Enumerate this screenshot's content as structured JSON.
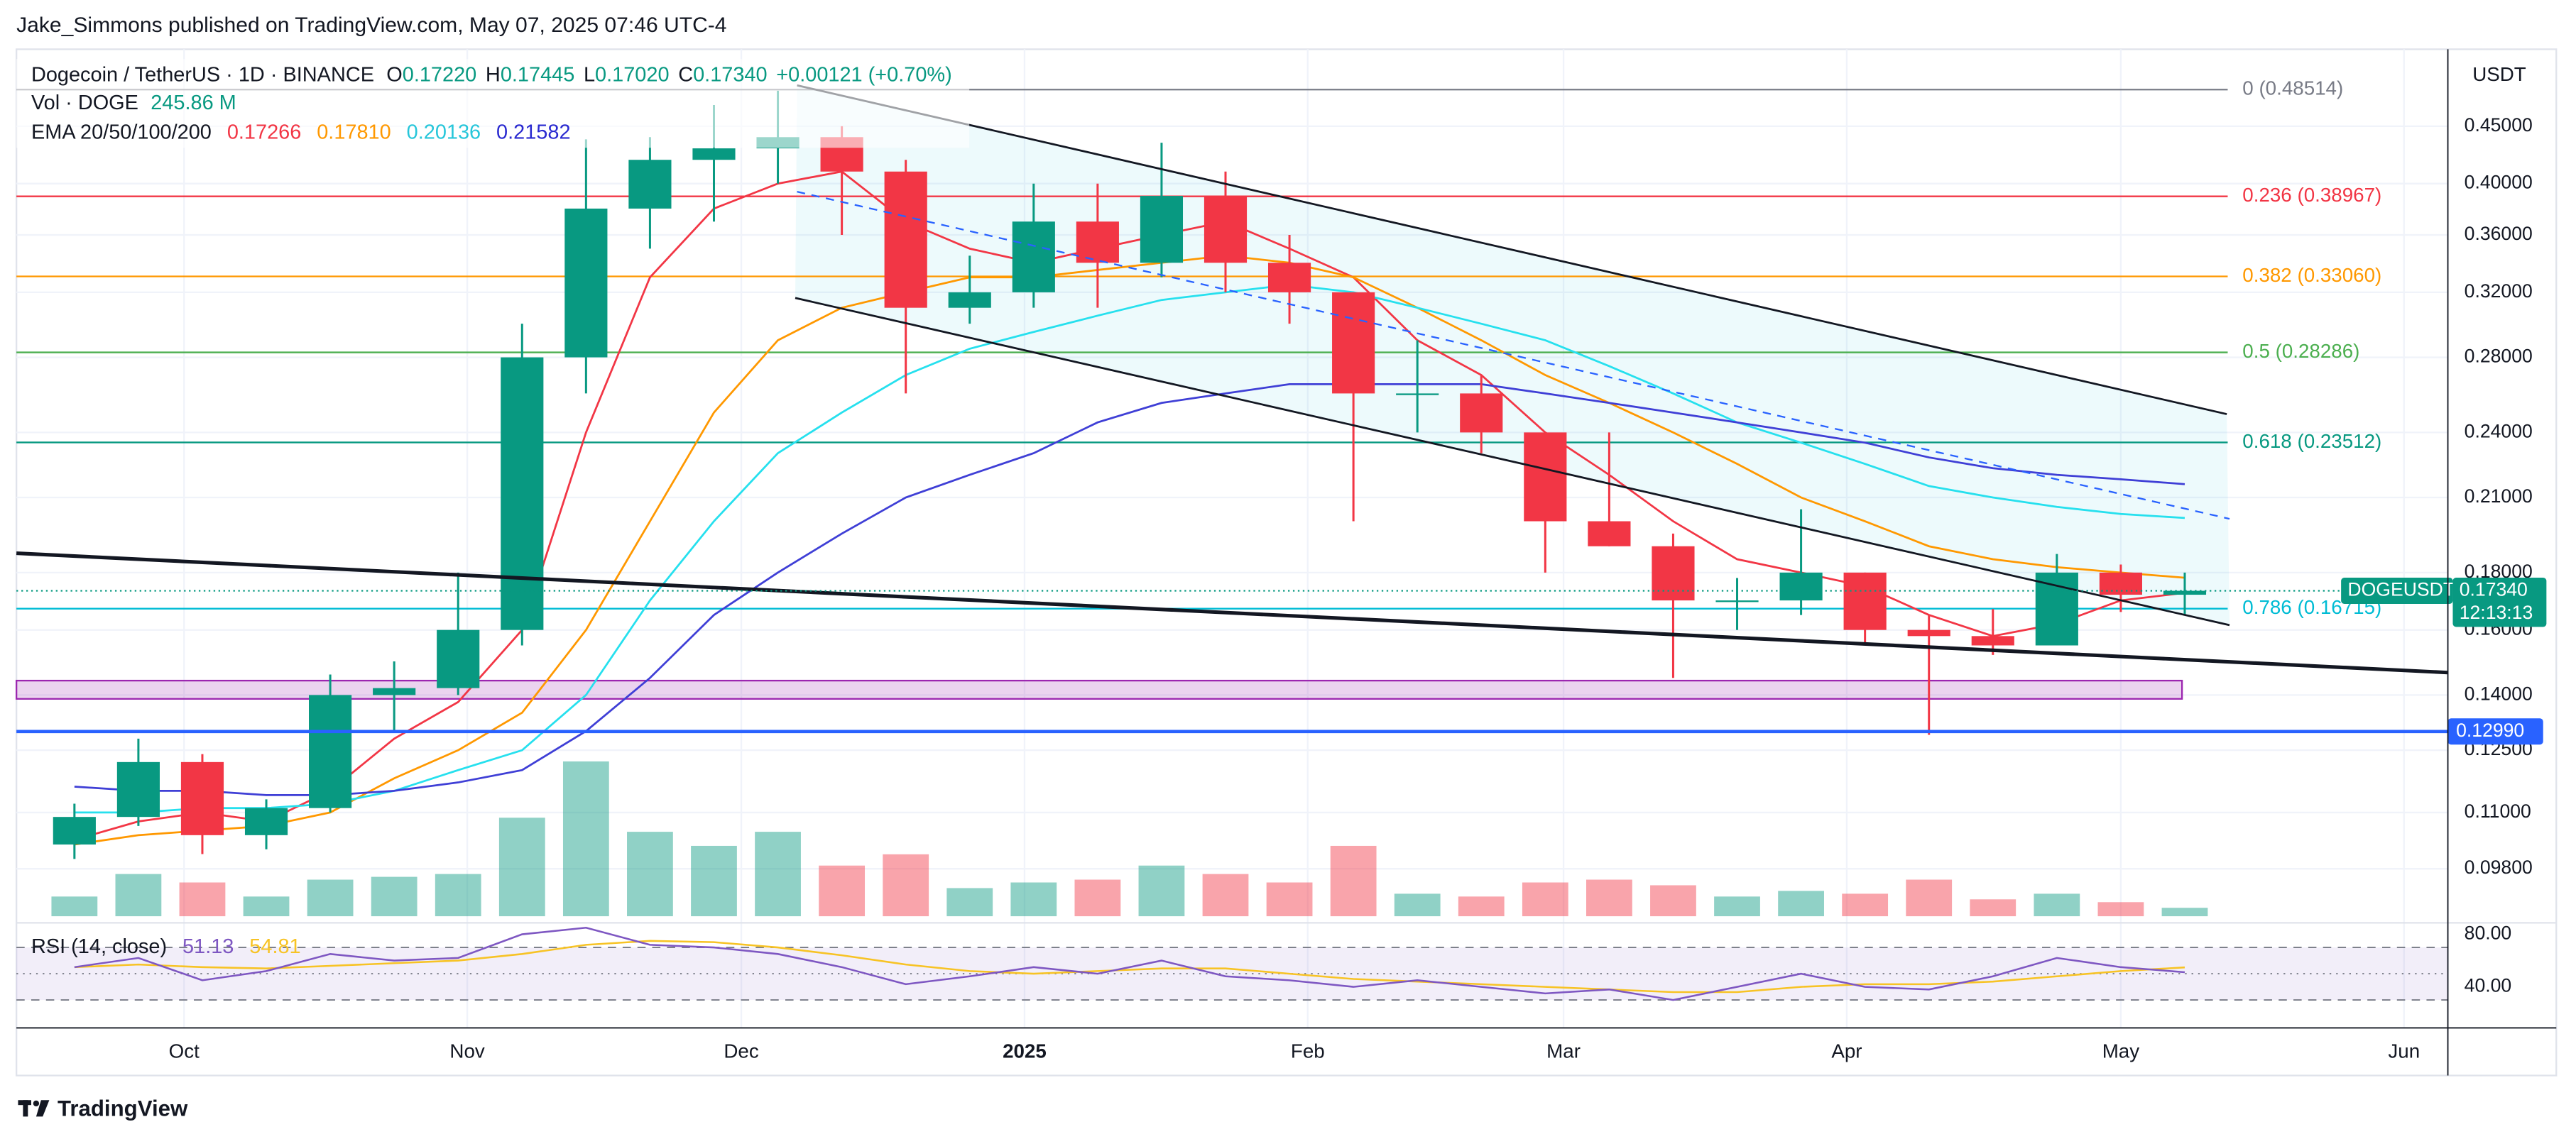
{
  "header": {
    "publisher": "Jake_Simmons published on TradingView.com, May 07, 2025 07:46 UTC-4"
  },
  "chart_data": {
    "type": "candlestick",
    "legend": {
      "symbol": "Dogecoin / TetherUS · 1D · BINANCE",
      "o_label": "O",
      "o": "0.17220",
      "h_label": "H",
      "h": "0.17445",
      "l_label": "L",
      "l": "0.17020",
      "c_label": "C",
      "c": "0.17340",
      "change": "+0.00121 (+0.70%)",
      "vol_label": "Vol · DOGE",
      "vol": "245.86 M",
      "ema_label": "EMA 20/50/100/200",
      "ema_values": [
        "0.17266",
        "0.17810",
        "0.20136",
        "0.21582"
      ]
    },
    "x": [
      -12,
      -5,
      2,
      9,
      16,
      23,
      30,
      37,
      44,
      51,
      58,
      65,
      72,
      79,
      86,
      93,
      100,
      107,
      114,
      121,
      128,
      135,
      142,
      149,
      156,
      163,
      170,
      177,
      184,
      191,
      198,
      205,
      212,
      219
    ],
    "open": [
      0.103,
      0.109,
      0.122,
      0.105,
      0.111,
      0.14,
      0.142,
      0.16,
      0.28,
      0.38,
      0.42,
      0.43,
      0.44,
      0.41,
      0.31,
      0.32,
      0.37,
      0.34,
      0.39,
      0.34,
      0.32,
      0.26,
      0.26,
      0.24,
      0.2,
      0.19,
      0.17,
      0.17,
      0.18,
      0.16,
      0.158,
      0.155,
      0.18,
      0.172
    ],
    "high": [
      0.112,
      0.128,
      0.124,
      0.113,
      0.146,
      0.15,
      0.18,
      0.3,
      0.438,
      0.44,
      0.47,
      0.484,
      0.45,
      0.42,
      0.345,
      0.4,
      0.4,
      0.435,
      0.41,
      0.36,
      0.32,
      0.29,
      0.27,
      0.24,
      0.24,
      0.195,
      0.178,
      0.205,
      0.18,
      0.165,
      0.167,
      0.187,
      0.183,
      0.18
    ],
    "low": [
      0.1,
      0.107,
      0.101,
      0.102,
      0.11,
      0.13,
      0.14,
      0.155,
      0.26,
      0.35,
      0.37,
      0.4,
      0.36,
      0.26,
      0.3,
      0.31,
      0.31,
      0.33,
      0.32,
      0.3,
      0.2,
      0.24,
      0.23,
      0.18,
      0.19,
      0.145,
      0.16,
      0.165,
      0.155,
      0.129,
      0.152,
      0.155,
      0.166,
      0.165
    ],
    "close": [
      0.109,
      0.122,
      0.105,
      0.111,
      0.14,
      0.142,
      0.16,
      0.28,
      0.38,
      0.42,
      0.43,
      0.44,
      0.41,
      0.31,
      0.32,
      0.37,
      0.34,
      0.39,
      0.34,
      0.32,
      0.26,
      0.26,
      0.24,
      0.2,
      0.19,
      0.17,
      0.17,
      0.18,
      0.16,
      0.158,
      0.155,
      0.18,
      0.172,
      0.1734
    ],
    "up_color": "#089981",
    "down_color": "#f23645",
    "xlim": [
      -18.35,
      247.8
    ],
    "xticks": [
      {
        "value": 0,
        "label": "Oct"
      },
      {
        "value": 31,
        "label": "Nov"
      },
      {
        "value": 61,
        "label": "Dec"
      },
      {
        "value": 92,
        "label": "2025"
      },
      {
        "value": 123,
        "label": "Feb"
      },
      {
        "value": 151,
        "label": "Mar"
      },
      {
        "value": 182,
        "label": "Apr"
      },
      {
        "value": 212,
        "label": "May"
      },
      {
        "value": 243,
        "label": "Jun"
      }
    ],
    "ylim": [
      0.0889,
      0.527
    ],
    "log": true,
    "y_unit": "USDT",
    "yticks": [
      {
        "value": 0.45,
        "label": "0.45000"
      },
      {
        "value": 0.4,
        "label": "0.40000"
      },
      {
        "value": 0.36,
        "label": "0.36000"
      },
      {
        "value": 0.32,
        "label": "0.32000"
      },
      {
        "value": 0.28,
        "label": "0.28000"
      },
      {
        "value": 0.24,
        "label": "0.24000"
      },
      {
        "value": 0.21,
        "label": "0.21000"
      },
      {
        "value": 0.18,
        "label": "0.18000"
      },
      {
        "value": 0.16,
        "label": "0.16000"
      },
      {
        "value": 0.14,
        "label": "0.14000"
      },
      {
        "value": 0.125,
        "label": "0.12500"
      },
      {
        "value": 0.11,
        "label": "0.11000"
      },
      {
        "value": 0.098,
        "label": "0.09800"
      }
    ],
    "grid": true,
    "series": [
      {
        "color": "#f23645",
        "values": [
          0.104,
          0.108,
          0.11,
          0.108,
          0.115,
          0.128,
          0.138,
          0.16,
          0.24,
          0.33,
          0.38,
          0.4,
          0.41,
          0.37,
          0.35,
          0.34,
          0.35,
          0.36,
          0.37,
          0.35,
          0.33,
          0.29,
          0.27,
          0.24,
          0.22,
          0.2,
          0.185,
          0.18,
          0.175,
          0.165,
          0.158,
          0.162,
          0.17,
          0.17266
        ]
      },
      {
        "color": "#ff9800",
        "values": [
          0.103,
          0.105,
          0.106,
          0.107,
          0.11,
          0.118,
          0.125,
          0.135,
          0.16,
          0.2,
          0.25,
          0.29,
          0.31,
          0.32,
          0.33,
          0.33,
          0.335,
          0.34,
          0.345,
          0.34,
          0.33,
          0.31,
          0.29,
          0.27,
          0.255,
          0.24,
          0.225,
          0.21,
          0.2,
          0.19,
          0.185,
          0.182,
          0.18,
          0.1781
        ]
      },
      {
        "color": "#26e0ee",
        "values": [
          0.11,
          0.11,
          0.111,
          0.111,
          0.112,
          0.115,
          0.12,
          0.125,
          0.14,
          0.17,
          0.2,
          0.23,
          0.25,
          0.27,
          0.285,
          0.295,
          0.305,
          0.315,
          0.32,
          0.325,
          0.32,
          0.31,
          0.3,
          0.29,
          0.275,
          0.26,
          0.245,
          0.235,
          0.225,
          0.215,
          0.21,
          0.206,
          0.203,
          0.20136
        ]
      },
      {
        "color": "#3f3fd6",
        "values": [
          0.116,
          0.115,
          0.115,
          0.114,
          0.114,
          0.115,
          0.117,
          0.12,
          0.13,
          0.145,
          0.165,
          0.18,
          0.195,
          0.21,
          0.22,
          0.23,
          0.245,
          0.255,
          0.26,
          0.265,
          0.265,
          0.265,
          0.265,
          0.26,
          0.255,
          0.25,
          0.245,
          0.24,
          0.235,
          0.228,
          0.223,
          0.22,
          0.218,
          0.21582
        ]
      }
    ],
    "last_price": {
      "symbol": "DOGEUSDT",
      "value": 0.1734,
      "label": "0.17340",
      "countdown": "12:13:13",
      "color": "#089981"
    },
    "fib": {
      "labels": [
        "0 (0.48514)",
        "0.236 (0.38967)",
        "0.382 (0.33060)",
        "0.5 (0.28286)",
        "0.618 (0.23512)",
        "0.786 (0.16715)"
      ],
      "values": [
        0.48514,
        0.38967,
        0.3306,
        0.28286,
        0.23512,
        0.16715
      ],
      "colors": [
        "#787b86",
        "#f23645",
        "#ff9800",
        "#4caf50",
        "#089981",
        "#00bcd4"
      ]
    },
    "support": {
      "value": 0.1299,
      "label": "0.12990",
      "color": "#2962ff"
    },
    "zone": {
      "x": [
        -18.35,
        218.7
      ],
      "y": [
        0.1389,
        0.1442
      ],
      "color": "#9c27b0"
    },
    "trendlines": [
      {
        "x": [
          67.1,
          223.6
        ],
        "y": [
          0.4894,
          0.2492
        ],
        "color": "#131722",
        "width": 1.2,
        "dashed": false
      },
      {
        "x": [
          66.9,
          223.9
        ],
        "y": [
          0.3163,
          0.1616
        ],
        "color": "#131722",
        "width": 1.2,
        "dashed": false
      },
      {
        "x": [
          67.1,
          223.9
        ],
        "y": [
          0.3934,
          0.201
        ],
        "color": "#2962ff",
        "width": 1,
        "dashed": true
      },
      {
        "x": [
          -18.35,
          247.8
        ],
        "y": [
          0.1873,
          0.1466
        ],
        "color": "#131722",
        "width": 2.2,
        "dashed": false
      }
    ],
    "channel_fill_color": "#00bcd4",
    "volume": {
      "values": [
        700,
        1500,
        1200,
        700,
        1300,
        1400,
        1500,
        3500,
        5500,
        3000,
        2500,
        3000,
        1800,
        2200,
        1000,
        1200,
        1300,
        1800,
        1500,
        1200,
        2500,
        800,
        700,
        1200,
        1300,
        1100,
        700,
        900,
        800,
        1300,
        600,
        800,
        500,
        300
      ],
      "ylim": [
        0,
        7000
      ]
    },
    "rsi": {
      "title": "RSI (14, close)",
      "value_label": "51.13",
      "ma_label": "54.81",
      "color": "#7e57c2",
      "ma_color": "#f7c325",
      "values": [
        55,
        62,
        45,
        52,
        65,
        60,
        62,
        80,
        85,
        72,
        70,
        65,
        55,
        42,
        48,
        55,
        50,
        60,
        48,
        45,
        40,
        45,
        40,
        35,
        38,
        30,
        40,
        50,
        40,
        38,
        48,
        62,
        55,
        51.13
      ],
      "ma": [
        55,
        57,
        55,
        54,
        56,
        58,
        60,
        65,
        72,
        75,
        74,
        70,
        64,
        57,
        52,
        50,
        52,
        54,
        54,
        50,
        46,
        44,
        42,
        40,
        38,
        36,
        36,
        40,
        42,
        42,
        44,
        48,
        52,
        54.81
      ],
      "ylim": [
        8.75,
        88.75
      ],
      "yticks": [
        {
          "value": 80,
          "label": "80.00"
        },
        {
          "value": 40,
          "label": "40.00"
        }
      ],
      "bands": [
        30,
        50,
        70
      ]
    }
  },
  "footer": {
    "brand": "TradingView"
  }
}
